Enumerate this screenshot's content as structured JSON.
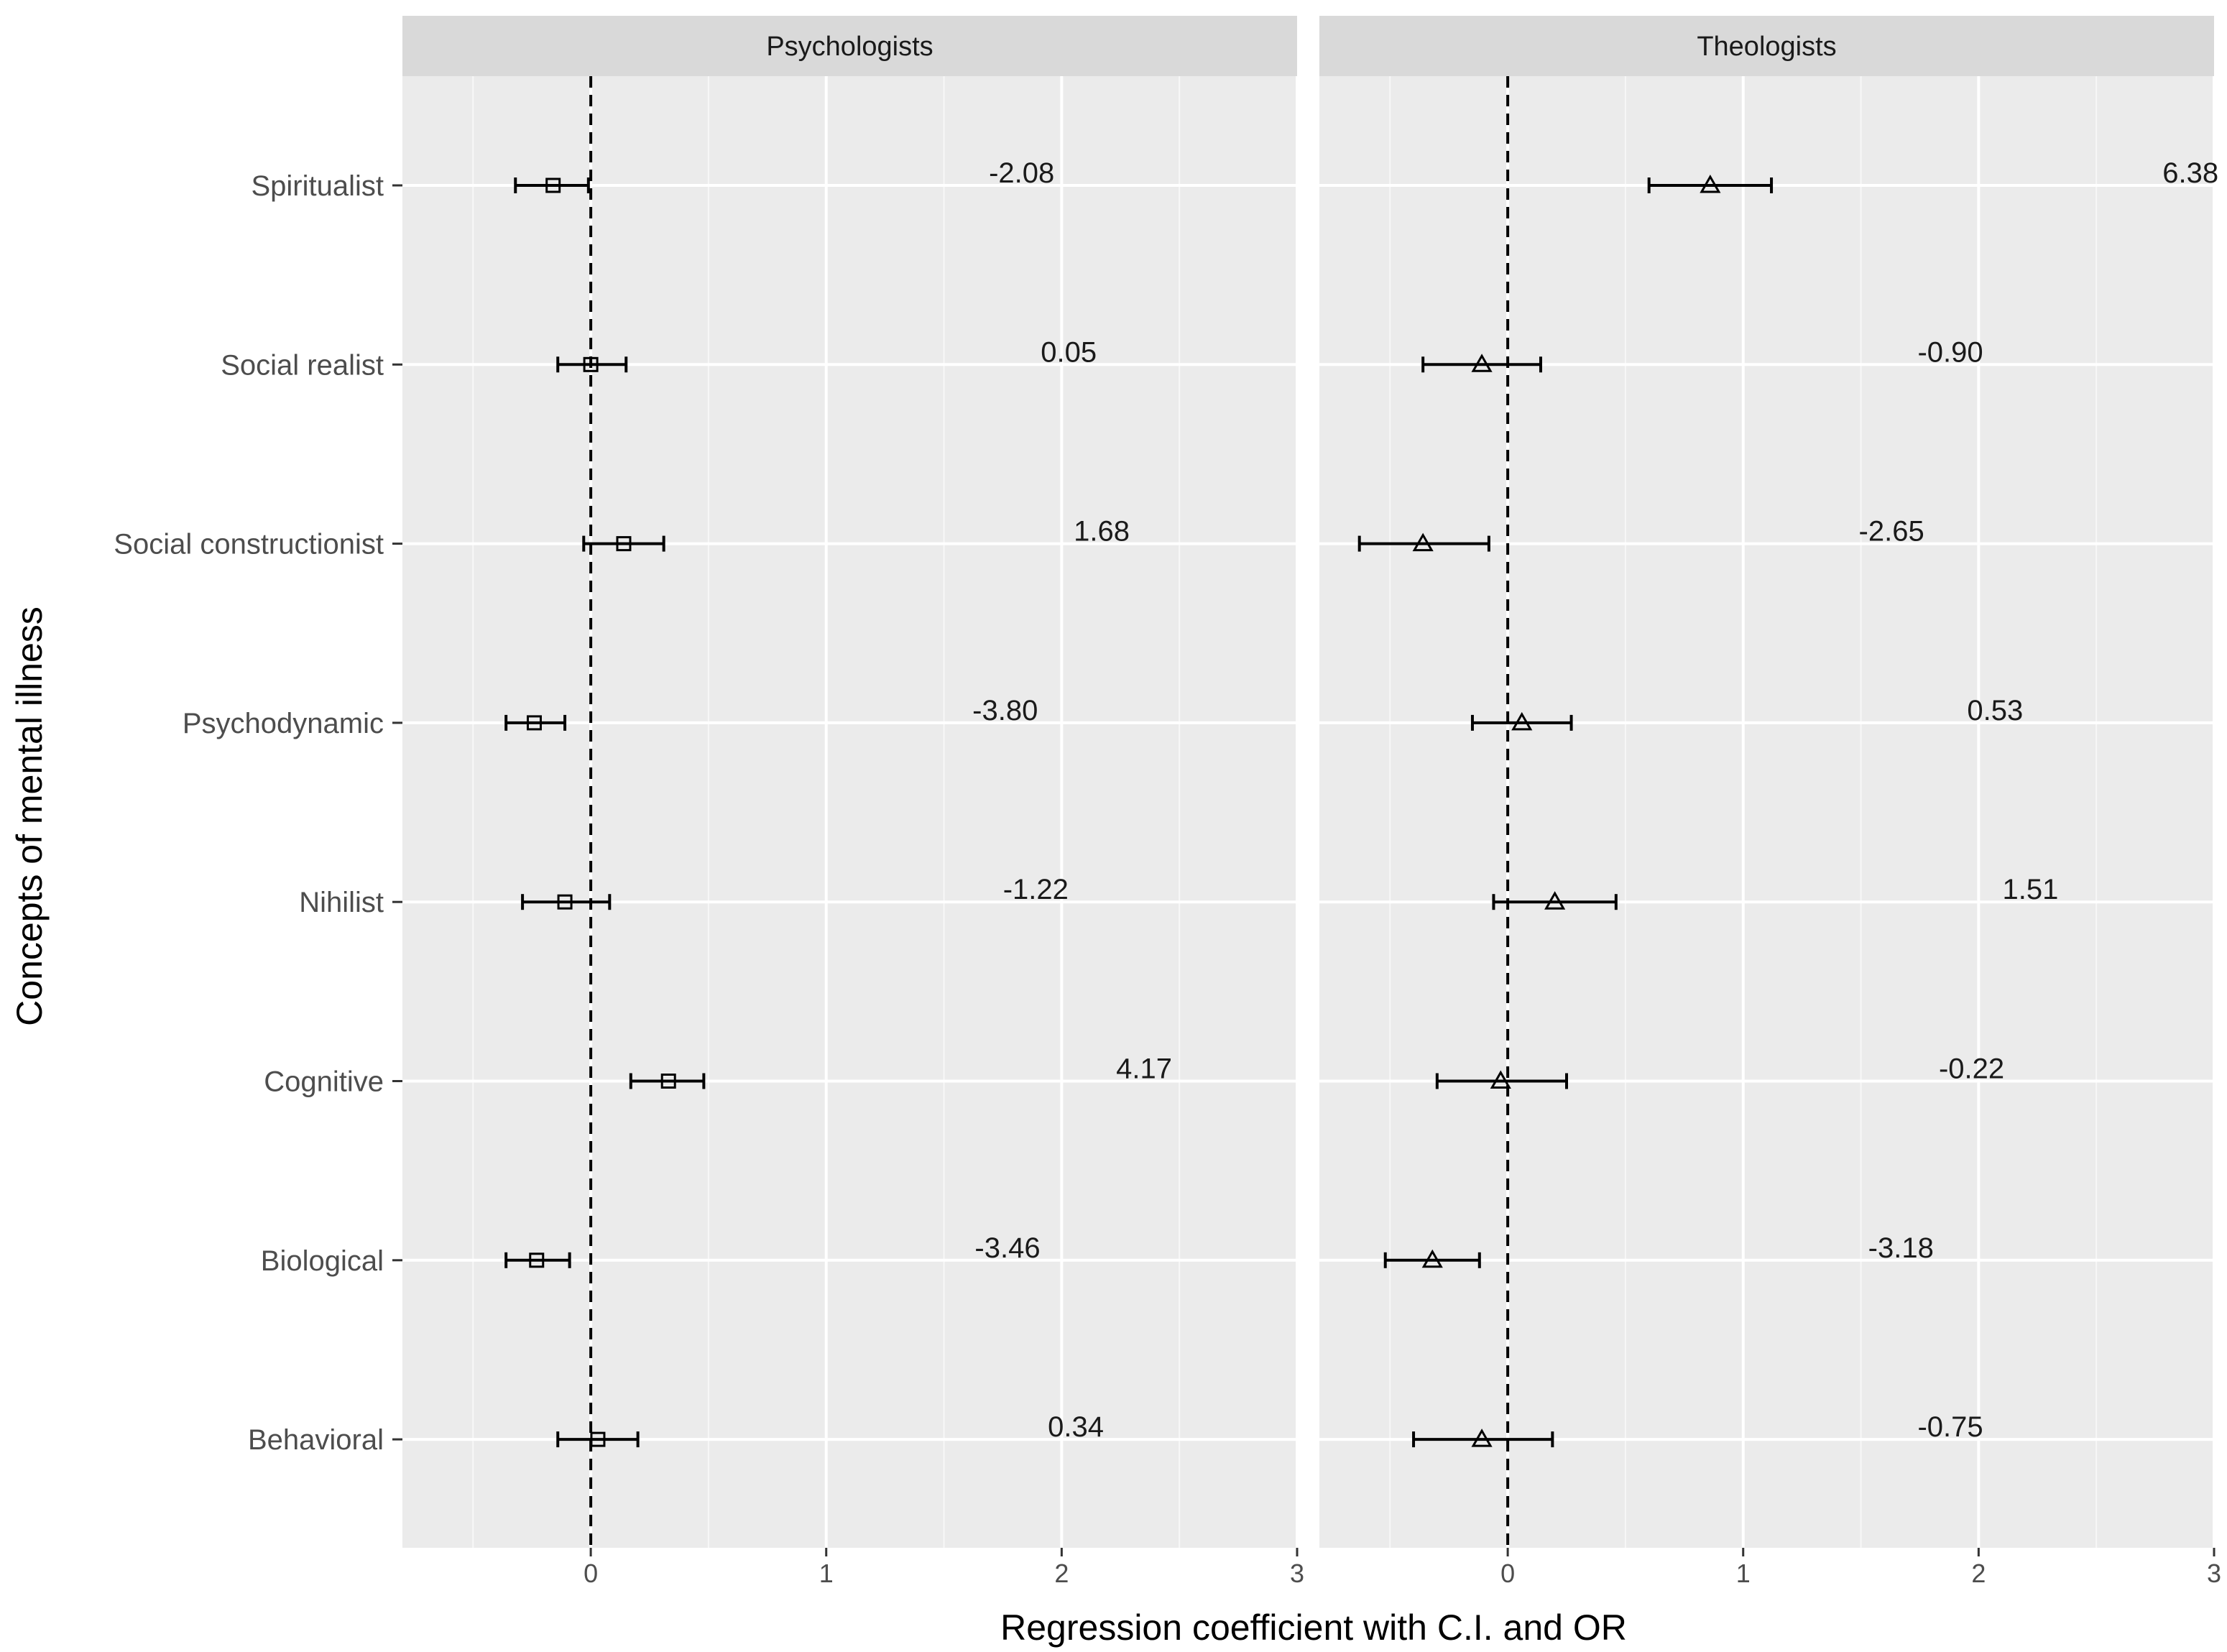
{
  "chart_data": {
    "type": "forest",
    "ylabel": "Concepts of mental illness",
    "xlabel": "Regression coefficient with C.I. and OR",
    "xlim": [
      -0.8,
      3.0
    ],
    "xticks": [
      0,
      1,
      2,
      3
    ],
    "reference_line_x": 0,
    "grid": true,
    "categories": [
      "Spiritualist",
      "Social realist",
      "Social constructionist",
      "Psychodynamic",
      "Nihilist",
      "Cognitive",
      "Biological",
      "Behavioral"
    ],
    "panels": [
      {
        "name": "Psychologists",
        "marker": "square",
        "estimates": [
          -0.16,
          0.0,
          0.14,
          -0.24,
          -0.11,
          0.33,
          -0.23,
          0.03
        ],
        "ci_low": [
          -0.32,
          -0.14,
          -0.03,
          -0.36,
          -0.29,
          0.17,
          -0.36,
          -0.14
        ],
        "ci_high": [
          -0.01,
          0.15,
          0.31,
          -0.11,
          0.08,
          0.48,
          -0.09,
          0.2
        ],
        "or_labels": [
          "-2.08",
          "0.05",
          "1.68",
          "-3.80",
          "-1.22",
          "4.17",
          "-3.46",
          "0.34"
        ],
        "or_label_x": [
          1.83,
          2.03,
          2.17,
          1.76,
          1.89,
          2.35,
          1.77,
          2.06
        ]
      },
      {
        "name": "Theologists",
        "marker": "triangle",
        "estimates": [
          0.86,
          -0.11,
          -0.36,
          0.06,
          0.2,
          -0.03,
          -0.32,
          -0.11
        ],
        "ci_low": [
          0.6,
          -0.36,
          -0.63,
          -0.15,
          -0.06,
          -0.3,
          -0.52,
          -0.4
        ],
        "ci_high": [
          1.12,
          0.14,
          -0.08,
          0.27,
          0.46,
          0.25,
          -0.12,
          0.19
        ],
        "or_labels": [
          "6.38",
          "-0.90",
          "-2.65",
          "0.53",
          "1.51",
          "-0.22",
          "-3.18",
          "-0.75"
        ],
        "or_label_x": [
          2.9,
          1.88,
          1.63,
          2.07,
          2.22,
          1.97,
          1.67,
          1.88
        ]
      }
    ]
  }
}
